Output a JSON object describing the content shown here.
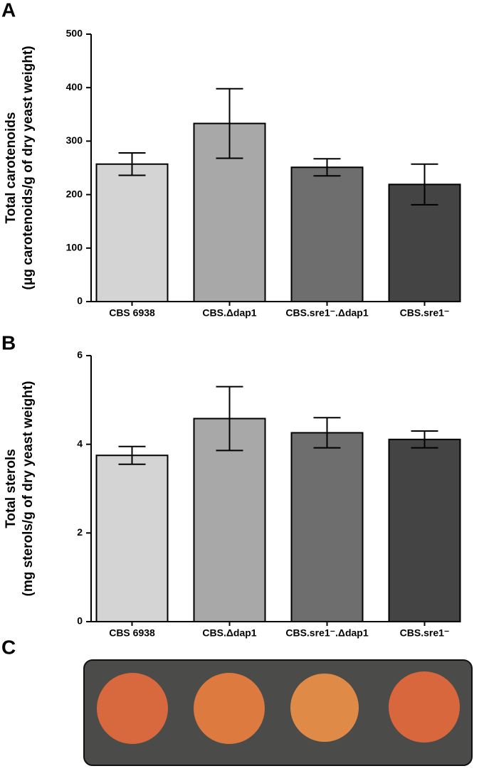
{
  "panel_labels": [
    "A",
    "B",
    "C"
  ],
  "chart_data": [
    {
      "type": "bar",
      "ylabel": [
        "Total carotenoids",
        "(μg carotenoids/g of dry yeast weight)"
      ],
      "categories": [
        "CBS 6938",
        "CBS.Δdap1",
        "CBS.sre1⁻.Δdap1",
        "CBS.sre1⁻"
      ],
      "values": [
        257,
        333,
        251,
        219
      ],
      "errors": [
        21,
        65,
        16,
        38
      ],
      "colors": [
        "#d4d4d4",
        "#a8a8a8",
        "#6e6e6e",
        "#444444"
      ],
      "ylim": [
        0,
        500
      ],
      "yticks": [
        0,
        100,
        200,
        300,
        400,
        500
      ]
    },
    {
      "type": "bar",
      "ylabel": [
        "Total sterols",
        "(mg sterols/g of dry yeast weight)"
      ],
      "categories": [
        "CBS 6938",
        "CBS.Δdap1",
        "CBS.sre1⁻.Δdap1",
        "CBS.sre1⁻"
      ],
      "values": [
        3.75,
        4.58,
        4.26,
        4.11
      ],
      "errors": [
        0.2,
        0.72,
        0.34,
        0.19
      ],
      "colors": [
        "#d4d4d4",
        "#a8a8a8",
        "#6e6e6e",
        "#444444"
      ],
      "ylim": [
        0,
        6
      ],
      "yticks": [
        0,
        2,
        4,
        6
      ]
    }
  ]
}
